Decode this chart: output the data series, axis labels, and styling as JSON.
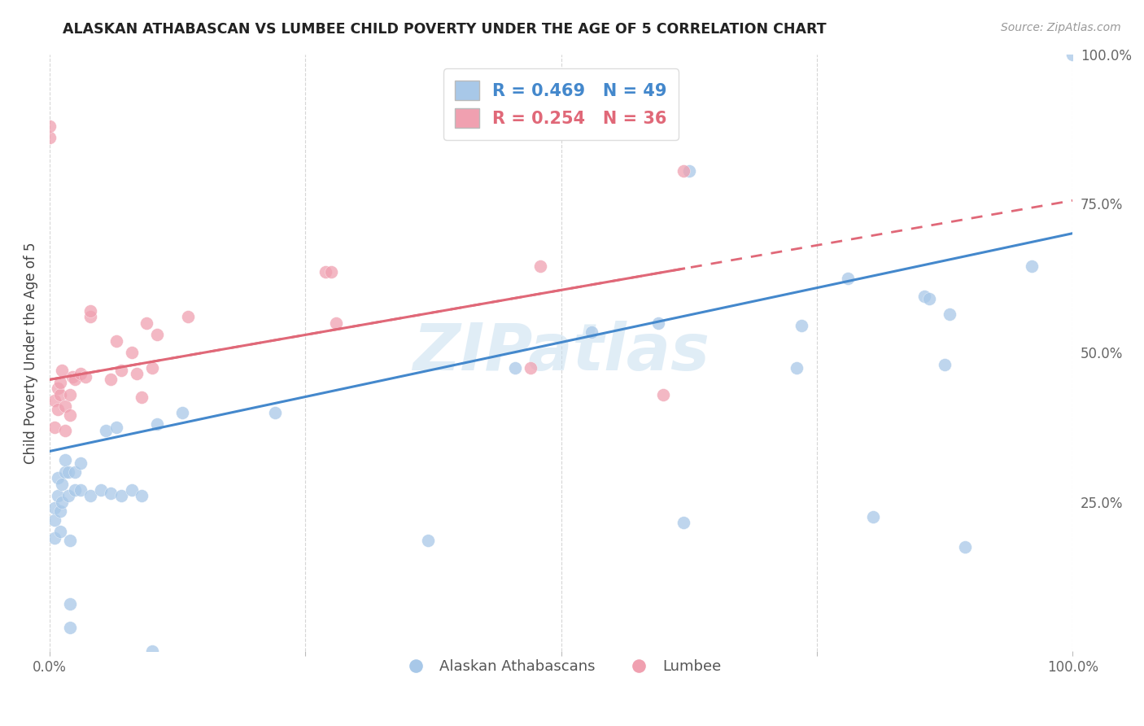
{
  "title": "ALASKAN ATHABASCAN VS LUMBEE CHILD POVERTY UNDER THE AGE OF 5 CORRELATION CHART",
  "source": "Source: ZipAtlas.com",
  "ylabel": "Child Poverty Under the Age of 5",
  "xlim": [
    0,
    1.0
  ],
  "ylim": [
    0,
    1.0
  ],
  "xticks": [
    0.0,
    0.25,
    0.5,
    0.75,
    1.0
  ],
  "xticklabels": [
    "0.0%",
    "",
    "",
    "",
    "100.0%"
  ],
  "ytick_labels_right": [
    "100.0%",
    "75.0%",
    "50.0%",
    "25.0%",
    ""
  ],
  "yticks": [
    1.0,
    0.75,
    0.5,
    0.25,
    0.0
  ],
  "legend_label1": "Alaskan Athabascans",
  "legend_label2": "Lumbee",
  "R1": 0.469,
  "N1": 49,
  "R2": 0.254,
  "N2": 36,
  "color_blue": "#a8c8e8",
  "color_pink": "#f0a0b0",
  "color_blue_line": "#4488cc",
  "color_pink_line": "#e06878",
  "watermark": "ZIPatlas",
  "blue_x": [
    0.005,
    0.005,
    0.005,
    0.008,
    0.008,
    0.01,
    0.01,
    0.012,
    0.012,
    0.015,
    0.015,
    0.018,
    0.018,
    0.02,
    0.02,
    0.02,
    0.025,
    0.025,
    0.03,
    0.03,
    0.04,
    0.05,
    0.055,
    0.06,
    0.065,
    0.07,
    0.08,
    0.09,
    0.1,
    0.105,
    0.13,
    0.22,
    0.37,
    0.455,
    0.53,
    0.595,
    0.62,
    0.625,
    0.73,
    0.735,
    0.78,
    0.805,
    0.855,
    0.86,
    0.875,
    0.88,
    0.895,
    0.96,
    1.0
  ],
  "blue_y": [
    0.19,
    0.22,
    0.24,
    0.26,
    0.29,
    0.2,
    0.235,
    0.25,
    0.28,
    0.3,
    0.32,
    0.26,
    0.3,
    0.04,
    0.08,
    0.185,
    0.27,
    0.3,
    0.27,
    0.315,
    0.26,
    0.27,
    0.37,
    0.265,
    0.375,
    0.26,
    0.27,
    0.26,
    0.0,
    0.38,
    0.4,
    0.4,
    0.185,
    0.475,
    0.535,
    0.55,
    0.215,
    0.805,
    0.475,
    0.545,
    0.625,
    0.225,
    0.595,
    0.59,
    0.48,
    0.565,
    0.175,
    0.645,
    1.0
  ],
  "pink_x": [
    0.0,
    0.0,
    0.005,
    0.005,
    0.008,
    0.008,
    0.01,
    0.01,
    0.012,
    0.015,
    0.015,
    0.02,
    0.02,
    0.022,
    0.025,
    0.03,
    0.035,
    0.04,
    0.04,
    0.06,
    0.065,
    0.07,
    0.08,
    0.085,
    0.09,
    0.095,
    0.1,
    0.105,
    0.135,
    0.27,
    0.275,
    0.28,
    0.47,
    0.48,
    0.6,
    0.62
  ],
  "pink_y": [
    0.86,
    0.88,
    0.375,
    0.42,
    0.405,
    0.44,
    0.43,
    0.45,
    0.47,
    0.37,
    0.41,
    0.395,
    0.43,
    0.46,
    0.455,
    0.465,
    0.46,
    0.56,
    0.57,
    0.455,
    0.52,
    0.47,
    0.5,
    0.465,
    0.425,
    0.55,
    0.475,
    0.53,
    0.56,
    0.635,
    0.635,
    0.55,
    0.475,
    0.645,
    0.43,
    0.805
  ],
  "blue_intercept": 0.335,
  "blue_slope": 0.365,
  "pink_intercept": 0.455,
  "pink_slope": 0.3,
  "pink_line_extend": 1.05
}
